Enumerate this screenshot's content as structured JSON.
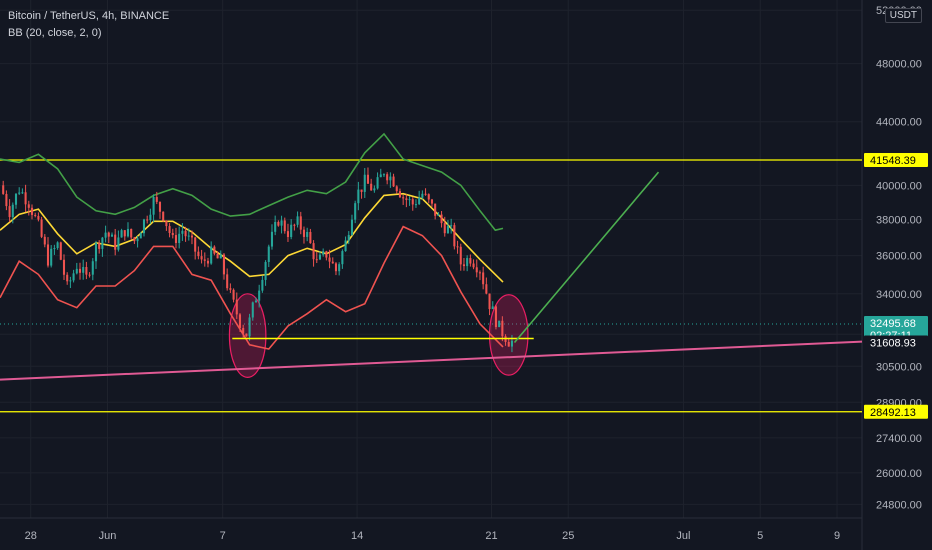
{
  "chart_data": {
    "type": "candlestick",
    "title": "Bitcoin / TetherUS, 4h, BINANCE",
    "indicator": "BB (20, close, 2, 0)",
    "currency_button": "USDT",
    "y_scale": "log",
    "ylim": [
      24300,
      52800
    ],
    "y_ticks": [
      {
        "value": 52000,
        "label": "52000.00"
      },
      {
        "value": 48000,
        "label": "48000.00"
      },
      {
        "value": 44000,
        "label": "44000.00"
      },
      {
        "value": 40000,
        "label": "40000.00"
      },
      {
        "value": 38000,
        "label": "38000.00"
      },
      {
        "value": 36000,
        "label": "36000.00"
      },
      {
        "value": 34000,
        "label": "34000.00"
      },
      {
        "value": 32000,
        "label": "32000.00"
      },
      {
        "value": 30500,
        "label": "30500.00"
      },
      {
        "value": 28900,
        "label": "28900.00"
      },
      {
        "value": 27400,
        "label": "27400.00"
      },
      {
        "value": 26000,
        "label": "26000.00"
      },
      {
        "value": 24800,
        "label": "24800.00"
      }
    ],
    "x_ticks": [
      {
        "day": 28,
        "label": "28"
      },
      {
        "day": 32,
        "label": "Jun"
      },
      {
        "day": 38,
        "label": "7"
      },
      {
        "day": 45,
        "label": "14"
      },
      {
        "day": 52,
        "label": "21"
      },
      {
        "day": 56,
        "label": "25"
      },
      {
        "day": 62,
        "label": "Jul"
      },
      {
        "day": 66,
        "label": "5"
      },
      {
        "day": 70,
        "label": "9"
      }
    ],
    "xlim_days": [
      26.4,
      71.3
    ],
    "price_labels": [
      {
        "label": "41548.39",
        "value": 41548.39,
        "color": "#ffff00",
        "text_color": "#000000"
      },
      {
        "label": "32495.68",
        "sub": "02:27:11",
        "value": 32495.68,
        "color": "#26a69a",
        "text_color": "#ffffff"
      },
      {
        "label": "31608.93",
        "value": 31608.93,
        "color": "#131722",
        "text_color": "#ffffff"
      },
      {
        "label": "28492.13",
        "value": 28492.13,
        "color": "#ffff00",
        "text_color": "#000000"
      }
    ],
    "close_path": [
      [
        26.4,
        40000
      ],
      [
        26.9,
        38500
      ],
      [
        27.4,
        39800
      ],
      [
        27.9,
        39000
      ],
      [
        28.4,
        37600
      ],
      [
        28.9,
        35800
      ],
      [
        29.4,
        36600
      ],
      [
        29.9,
        34300
      ],
      [
        30.4,
        35500
      ],
      [
        30.9,
        34800
      ],
      [
        31.4,
        36500
      ],
      [
        31.9,
        37300
      ],
      [
        32.4,
        36600
      ],
      [
        32.9,
        37400
      ],
      [
        33.4,
        36800
      ],
      [
        33.9,
        37900
      ],
      [
        34.4,
        39100
      ],
      [
        34.9,
        38300
      ],
      [
        35.4,
        36800
      ],
      [
        35.9,
        37400
      ],
      [
        36.4,
        36600
      ],
      [
        36.9,
        35600
      ],
      [
        37.4,
        36100
      ],
      [
        37.9,
        35700
      ],
      [
        38.4,
        33900
      ],
      [
        38.9,
        32600
      ],
      [
        39.2,
        31900
      ],
      [
        39.6,
        33400
      ],
      [
        40.0,
        34800
      ],
      [
        40.4,
        36500
      ],
      [
        40.9,
        38000
      ],
      [
        41.4,
        37300
      ],
      [
        41.9,
        37800
      ],
      [
        42.4,
        37100
      ],
      [
        42.9,
        35600
      ],
      [
        43.4,
        36100
      ],
      [
        43.9,
        35200
      ],
      [
        44.4,
        36700
      ],
      [
        44.9,
        39300
      ],
      [
        45.4,
        40200
      ],
      [
        45.9,
        39700
      ],
      [
        46.4,
        40900
      ],
      [
        46.9,
        40300
      ],
      [
        47.4,
        39300
      ],
      [
        47.9,
        38900
      ],
      [
        48.4,
        39500
      ],
      [
        48.9,
        38700
      ],
      [
        49.4,
        37800
      ],
      [
        49.9,
        37300
      ],
      [
        50.4,
        35600
      ],
      [
        50.9,
        35900
      ],
      [
        51.4,
        35300
      ],
      [
        51.9,
        33500
      ],
      [
        52.4,
        32300
      ],
      [
        52.9,
        31700
      ],
      [
        53.2,
        31609
      ]
    ],
    "bb_upper": [
      [
        26.4,
        41600
      ],
      [
        27.4,
        41400
      ],
      [
        28.4,
        41900
      ],
      [
        29.4,
        41000
      ],
      [
        30.4,
        39300
      ],
      [
        31.4,
        38500
      ],
      [
        32.4,
        38300
      ],
      [
        33.4,
        38700
      ],
      [
        34.4,
        39400
      ],
      [
        35.4,
        39800
      ],
      [
        36.4,
        39400
      ],
      [
        37.4,
        38600
      ],
      [
        38.4,
        38200
      ],
      [
        39.4,
        38300
      ],
      [
        40.4,
        38800
      ],
      [
        41.4,
        39300
      ],
      [
        42.4,
        39700
      ],
      [
        43.4,
        39500
      ],
      [
        44.4,
        40200
      ],
      [
        45.4,
        42000
      ],
      [
        46.4,
        43200
      ],
      [
        47.4,
        41600
      ],
      [
        48.4,
        41200
      ],
      [
        49.4,
        40800
      ],
      [
        50.4,
        40000
      ],
      [
        51.4,
        38500
      ],
      [
        52.2,
        37400
      ],
      [
        52.6,
        37500
      ]
    ],
    "bb_basis": [
      [
        26.4,
        37400
      ],
      [
        27.4,
        38300
      ],
      [
        28.4,
        38600
      ],
      [
        29.4,
        37200
      ],
      [
        30.4,
        36100
      ],
      [
        31.4,
        36700
      ],
      [
        32.4,
        36500
      ],
      [
        33.4,
        36900
      ],
      [
        34.4,
        37900
      ],
      [
        35.4,
        37900
      ],
      [
        36.4,
        37300
      ],
      [
        37.4,
        36400
      ],
      [
        38.4,
        35700
      ],
      [
        39.4,
        34900
      ],
      [
        40.4,
        35000
      ],
      [
        41.4,
        36000
      ],
      [
        42.4,
        36400
      ],
      [
        43.4,
        36100
      ],
      [
        44.4,
        36600
      ],
      [
        45.4,
        38100
      ],
      [
        46.4,
        39400
      ],
      [
        47.4,
        39500
      ],
      [
        48.4,
        39200
      ],
      [
        49.4,
        38100
      ],
      [
        50.4,
        36900
      ],
      [
        51.4,
        35800
      ],
      [
        52.6,
        34600
      ]
    ],
    "bb_lower": [
      [
        26.4,
        33800
      ],
      [
        27.4,
        35700
      ],
      [
        28.4,
        35000
      ],
      [
        29.4,
        33700
      ],
      [
        30.4,
        33300
      ],
      [
        31.4,
        34400
      ],
      [
        32.4,
        34400
      ],
      [
        33.4,
        35200
      ],
      [
        34.4,
        36500
      ],
      [
        35.4,
        36500
      ],
      [
        36.4,
        35000
      ],
      [
        37.4,
        34700
      ],
      [
        38.4,
        33000
      ],
      [
        39.4,
        31500
      ],
      [
        40.4,
        31300
      ],
      [
        41.4,
        32400
      ],
      [
        42.4,
        33000
      ],
      [
        43.4,
        33700
      ],
      [
        44.4,
        33100
      ],
      [
        45.4,
        33500
      ],
      [
        46.4,
        35600
      ],
      [
        47.4,
        37600
      ],
      [
        48.4,
        37100
      ],
      [
        49.4,
        36000
      ],
      [
        50.4,
        34100
      ],
      [
        51.4,
        32500
      ],
      [
        52.6,
        31400
      ]
    ],
    "drawings": {
      "resistance": {
        "price": 41548.39,
        "color": "#ffff00"
      },
      "lower_level": {
        "price": 28492.13,
        "color": "#ffff00"
      },
      "neckline": {
        "price": 31800,
        "from_day": 38.5,
        "to_day": 54.2,
        "color": "#ffff00"
      },
      "trendline": {
        "from": [
          26.4,
          29900
        ],
        "to": [
          71.3,
          31650
        ],
        "color": "#e05a94"
      },
      "projection": {
        "from": [
          53.2,
          31609
        ],
        "to": [
          60.7,
          40800
        ],
        "color": "#4caf50"
      },
      "ellipses": [
        {
          "center": [
            39.3,
            31750
          ],
          "rx_days": 0.95,
          "ry_price_top": 34000,
          "ry_price_bottom": 30000
        },
        {
          "center": [
            52.9,
            31650
          ],
          "rx_days": 1.0,
          "ry_price_top": 33950,
          "ry_price_bottom": 30100
        }
      ]
    }
  }
}
